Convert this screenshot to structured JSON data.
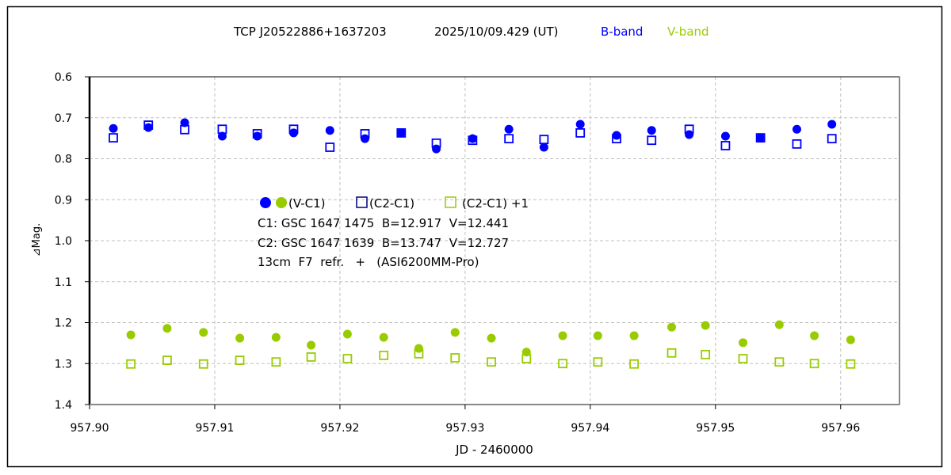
{
  "chart_data": {
    "type": "scatter",
    "title": {
      "object": "TCP J20522886+1637203",
      "date": "2025/10/09.429 (UT)",
      "b_band": "B-band",
      "v_band": "V-band"
    },
    "xlabel": "JD - 2460000",
    "ylabel": "⊿Mag.",
    "xlim": [
      957.9,
      957.9647
    ],
    "ylim": [
      0.6,
      1.4
    ],
    "y_inverted": true,
    "grid": true,
    "xticks": [
      "957.90",
      "957.91",
      "957.92",
      "957.93",
      "957.94",
      "957.95",
      "957.96"
    ],
    "xtick_values": [
      957.9,
      957.91,
      957.92,
      957.93,
      957.94,
      957.95,
      957.96
    ],
    "yticks": [
      "0.6",
      "0.7",
      "0.8",
      "0.9",
      "1.0",
      "1.1",
      "1.2",
      "1.3",
      "1.4"
    ],
    "ytick_values": [
      0.6,
      0.7,
      0.8,
      0.9,
      1.0,
      1.1,
      1.2,
      1.3,
      1.4
    ],
    "colors": {
      "b": "#0000ff",
      "v": "#99cc00",
      "legend_square_b": "#000080"
    },
    "legend": {
      "vc1": "(V-C1)",
      "c2c1": "(C2-C1)",
      "c2c1_plus1": "(C2-C1) +1",
      "line_c1": "C1: GSC 1647 1475  B=12.917  V=12.441",
      "line_c2": "C2: GSC 1647 1639  B=13.747  V=12.727",
      "line_inst": "13cm  F7  refr.   +   (ASI6200MM-Pro)"
    },
    "series": [
      {
        "name": "B (V-C1)",
        "band": "B",
        "marker": "dot",
        "x": [
          957.9019,
          957.9047,
          957.9076,
          957.9106,
          957.9134,
          957.9163,
          957.9192,
          957.922,
          957.9249,
          957.9277,
          957.9306,
          957.9335,
          957.9363,
          957.9392,
          957.9421,
          957.9449,
          957.9479,
          957.9508,
          957.9536,
          957.9565,
          957.9593
        ],
        "y": [
          0.726,
          0.724,
          0.712,
          0.745,
          0.745,
          0.737,
          0.731,
          0.751,
          0.737,
          0.776,
          0.751,
          0.728,
          0.772,
          0.716,
          0.743,
          0.731,
          0.741,
          0.745,
          0.749,
          0.728,
          0.716
        ]
      },
      {
        "name": "B (C2-C1)",
        "band": "B",
        "marker": "square",
        "x": [
          957.9019,
          957.9047,
          957.9076,
          957.9106,
          957.9134,
          957.9163,
          957.9192,
          957.922,
          957.9249,
          957.9277,
          957.9306,
          957.9335,
          957.9363,
          957.9392,
          957.9421,
          957.9449,
          957.9479,
          957.9508,
          957.9536,
          957.9565,
          957.9593
        ],
        "y": [
          0.749,
          0.718,
          0.729,
          0.728,
          0.739,
          0.728,
          0.772,
          0.739,
          0.737,
          0.762,
          0.755,
          0.751,
          0.753,
          0.737,
          0.751,
          0.755,
          0.728,
          0.768,
          0.749,
          0.764,
          0.751
        ]
      },
      {
        "name": "V (V-C1)",
        "band": "V",
        "marker": "dot",
        "x": [
          957.9033,
          957.9062,
          957.9091,
          957.912,
          957.9149,
          957.9177,
          957.9206,
          957.9235,
          957.9263,
          957.9292,
          957.9321,
          957.9349,
          957.9378,
          957.9406,
          957.9435,
          957.9465,
          957.9492,
          957.9522,
          957.9551,
          957.9579,
          957.9608
        ],
        "y": [
          1.23,
          1.214,
          1.224,
          1.238,
          1.236,
          1.255,
          1.228,
          1.236,
          1.263,
          1.224,
          1.238,
          1.272,
          1.232,
          1.232,
          1.232,
          1.211,
          1.207,
          1.249,
          1.205,
          1.232,
          1.242
        ]
      },
      {
        "name": "V (C2-C1)+1",
        "band": "V",
        "marker": "square",
        "x": [
          957.9033,
          957.9062,
          957.9091,
          957.912,
          957.9149,
          957.9177,
          957.9206,
          957.9235,
          957.9263,
          957.9292,
          957.9321,
          957.9349,
          957.9378,
          957.9406,
          957.9435,
          957.9465,
          957.9492,
          957.9522,
          957.9551,
          957.9579,
          957.9608
        ],
        "y": [
          1.301,
          1.292,
          1.301,
          1.292,
          1.296,
          1.284,
          1.288,
          1.28,
          1.276,
          1.286,
          1.296,
          1.288,
          1.3,
          1.296,
          1.301,
          1.274,
          1.278,
          1.288,
          1.296,
          1.3,
          1.301
        ]
      }
    ]
  }
}
